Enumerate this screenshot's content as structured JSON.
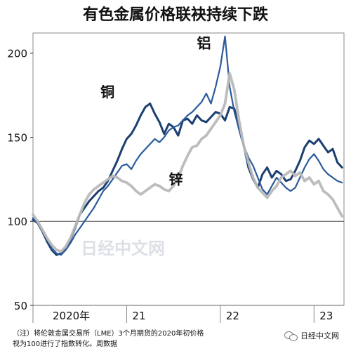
{
  "chart_data": {
    "type": "line",
    "title": "有色金属价格联袂持续下跌",
    "y_ticks": [
      50,
      100,
      150,
      200
    ],
    "ylim": [
      50,
      212
    ],
    "x_labels": [
      {
        "label": "2020年",
        "x": 2020.15
      },
      {
        "label": "21",
        "x": 2021.0
      },
      {
        "label": "22",
        "x": 2022.0
      },
      {
        "label": "23",
        "x": 2023.0
      }
    ],
    "xlim": [
      2020.0,
      2023.32
    ],
    "reference_line": 100,
    "watermark": "日经中文网",
    "series": [
      {
        "name": "铜",
        "color": "#1c3f70",
        "points": [
          [
            2020.0,
            101
          ],
          [
            2020.05,
            99
          ],
          [
            2020.1,
            94
          ],
          [
            2020.15,
            88
          ],
          [
            2020.2,
            83
          ],
          [
            2020.25,
            80
          ],
          [
            2020.3,
            81
          ],
          [
            2020.35,
            84
          ],
          [
            2020.4,
            89
          ],
          [
            2020.45,
            96
          ],
          [
            2020.5,
            104
          ],
          [
            2020.55,
            108
          ],
          [
            2020.6,
            112
          ],
          [
            2020.65,
            115
          ],
          [
            2020.7,
            118
          ],
          [
            2020.75,
            120
          ],
          [
            2020.8,
            124
          ],
          [
            2020.85,
            130
          ],
          [
            2020.9,
            136
          ],
          [
            2020.95,
            143
          ],
          [
            2021.0,
            149
          ],
          [
            2021.05,
            152
          ],
          [
            2021.1,
            157
          ],
          [
            2021.15,
            163
          ],
          [
            2021.2,
            168
          ],
          [
            2021.25,
            170
          ],
          [
            2021.3,
            164
          ],
          [
            2021.35,
            159
          ],
          [
            2021.4,
            152
          ],
          [
            2021.45,
            158
          ],
          [
            2021.5,
            156
          ],
          [
            2021.55,
            151
          ],
          [
            2021.6,
            160
          ],
          [
            2021.65,
            161
          ],
          [
            2021.7,
            158
          ],
          [
            2021.75,
            163
          ],
          [
            2021.8,
            160
          ],
          [
            2021.85,
            159
          ],
          [
            2021.9,
            162
          ],
          [
            2021.95,
            165
          ],
          [
            2022.0,
            164
          ],
          [
            2022.05,
            160
          ],
          [
            2022.1,
            168
          ],
          [
            2022.15,
            167
          ],
          [
            2022.2,
            155
          ],
          [
            2022.25,
            145
          ],
          [
            2022.3,
            132
          ],
          [
            2022.35,
            125
          ],
          [
            2022.4,
            120
          ],
          [
            2022.45,
            128
          ],
          [
            2022.5,
            132
          ],
          [
            2022.55,
            126
          ],
          [
            2022.6,
            130
          ],
          [
            2022.65,
            128
          ],
          [
            2022.7,
            124
          ],
          [
            2022.75,
            125
          ],
          [
            2022.8,
            130
          ],
          [
            2022.85,
            136
          ],
          [
            2022.9,
            144
          ],
          [
            2022.95,
            148
          ],
          [
            2023.0,
            146
          ],
          [
            2023.05,
            149
          ],
          [
            2023.1,
            145
          ],
          [
            2023.15,
            141
          ],
          [
            2023.2,
            143
          ],
          [
            2023.25,
            135
          ],
          [
            2023.3,
            132
          ]
        ]
      },
      {
        "name": "铝",
        "color": "#2a5b9a",
        "points": [
          [
            2020.0,
            102
          ],
          [
            2020.05,
            99
          ],
          [
            2020.1,
            94
          ],
          [
            2020.15,
            89
          ],
          [
            2020.2,
            84
          ],
          [
            2020.25,
            81
          ],
          [
            2020.3,
            80
          ],
          [
            2020.35,
            83
          ],
          [
            2020.4,
            87
          ],
          [
            2020.45,
            92
          ],
          [
            2020.5,
            96
          ],
          [
            2020.55,
            100
          ],
          [
            2020.6,
            104
          ],
          [
            2020.65,
            108
          ],
          [
            2020.7,
            113
          ],
          [
            2020.75,
            118
          ],
          [
            2020.8,
            121
          ],
          [
            2020.85,
            125
          ],
          [
            2020.9,
            129
          ],
          [
            2020.95,
            133
          ],
          [
            2021.0,
            134
          ],
          [
            2021.05,
            131
          ],
          [
            2021.1,
            136
          ],
          [
            2021.15,
            140
          ],
          [
            2021.2,
            143
          ],
          [
            2021.25,
            146
          ],
          [
            2021.3,
            149
          ],
          [
            2021.35,
            147
          ],
          [
            2021.4,
            150
          ],
          [
            2021.45,
            154
          ],
          [
            2021.5,
            156
          ],
          [
            2021.55,
            157
          ],
          [
            2021.6,
            160
          ],
          [
            2021.65,
            163
          ],
          [
            2021.7,
            165
          ],
          [
            2021.75,
            168
          ],
          [
            2021.8,
            171
          ],
          [
            2021.85,
            176
          ],
          [
            2021.9,
            170
          ],
          [
            2021.95,
            180
          ],
          [
            2022.0,
            192
          ],
          [
            2022.05,
            210
          ],
          [
            2022.1,
            180
          ],
          [
            2022.15,
            165
          ],
          [
            2022.2,
            155
          ],
          [
            2022.25,
            145
          ],
          [
            2022.3,
            138
          ],
          [
            2022.35,
            133
          ],
          [
            2022.4,
            126
          ],
          [
            2022.45,
            119
          ],
          [
            2022.5,
            116
          ],
          [
            2022.55,
            121
          ],
          [
            2022.6,
            126
          ],
          [
            2022.65,
            123
          ],
          [
            2022.7,
            120
          ],
          [
            2022.75,
            118
          ],
          [
            2022.8,
            120
          ],
          [
            2022.85,
            126
          ],
          [
            2022.9,
            132
          ],
          [
            2022.95,
            137
          ],
          [
            2023.0,
            140
          ],
          [
            2023.05,
            136
          ],
          [
            2023.1,
            131
          ],
          [
            2023.15,
            128
          ],
          [
            2023.2,
            126
          ],
          [
            2023.25,
            124
          ],
          [
            2023.3,
            123
          ]
        ]
      },
      {
        "name": "锌",
        "color": "#b9b9b9",
        "points": [
          [
            2020.0,
            104
          ],
          [
            2020.05,
            100
          ],
          [
            2020.1,
            95
          ],
          [
            2020.15,
            90
          ],
          [
            2020.2,
            86
          ],
          [
            2020.25,
            83
          ],
          [
            2020.3,
            82
          ],
          [
            2020.35,
            85
          ],
          [
            2020.4,
            90
          ],
          [
            2020.45,
            97
          ],
          [
            2020.5,
            104
          ],
          [
            2020.55,
            111
          ],
          [
            2020.6,
            116
          ],
          [
            2020.65,
            119
          ],
          [
            2020.7,
            121
          ],
          [
            2020.75,
            123
          ],
          [
            2020.8,
            125
          ],
          [
            2020.85,
            127
          ],
          [
            2020.9,
            126
          ],
          [
            2020.95,
            124
          ],
          [
            2021.0,
            123
          ],
          [
            2021.05,
            121
          ],
          [
            2021.1,
            118
          ],
          [
            2021.15,
            116
          ],
          [
            2021.2,
            118
          ],
          [
            2021.25,
            120
          ],
          [
            2021.3,
            122
          ],
          [
            2021.35,
            121
          ],
          [
            2021.4,
            119
          ],
          [
            2021.45,
            118
          ],
          [
            2021.5,
            121
          ],
          [
            2021.55,
            126
          ],
          [
            2021.6,
            133
          ],
          [
            2021.65,
            139
          ],
          [
            2021.7,
            144
          ],
          [
            2021.75,
            145
          ],
          [
            2021.8,
            149
          ],
          [
            2021.85,
            151
          ],
          [
            2021.9,
            155
          ],
          [
            2021.95,
            159
          ],
          [
            2022.0,
            163
          ],
          [
            2022.05,
            170
          ],
          [
            2022.1,
            188
          ],
          [
            2022.15,
            178
          ],
          [
            2022.2,
            160
          ],
          [
            2022.25,
            145
          ],
          [
            2022.3,
            135
          ],
          [
            2022.35,
            126
          ],
          [
            2022.4,
            120
          ],
          [
            2022.45,
            117
          ],
          [
            2022.5,
            114
          ],
          [
            2022.55,
            118
          ],
          [
            2022.6,
            121
          ],
          [
            2022.65,
            126
          ],
          [
            2022.7,
            128
          ],
          [
            2022.75,
            130
          ],
          [
            2022.8,
            127
          ],
          [
            2022.85,
            129
          ],
          [
            2022.9,
            124
          ],
          [
            2022.95,
            126
          ],
          [
            2023.0,
            122
          ],
          [
            2023.05,
            124
          ],
          [
            2023.1,
            118
          ],
          [
            2023.15,
            116
          ],
          [
            2023.2,
            113
          ],
          [
            2023.25,
            108
          ],
          [
            2023.3,
            103
          ]
        ]
      }
    ],
    "labels": [
      {
        "name": "铜",
        "x": 2020.72,
        "y": 174
      },
      {
        "name": "铝",
        "x": 2021.75,
        "y": 203
      },
      {
        "name": "锌",
        "x": 2021.45,
        "y": 122
      }
    ]
  },
  "footnote": {
    "line1": "（注）将伦敦金属交易所（LME）3个月期货的2020年初价格",
    "line2": "视为100进行了指数转化。周数据"
  },
  "brand": {
    "text": "日经中文网"
  }
}
